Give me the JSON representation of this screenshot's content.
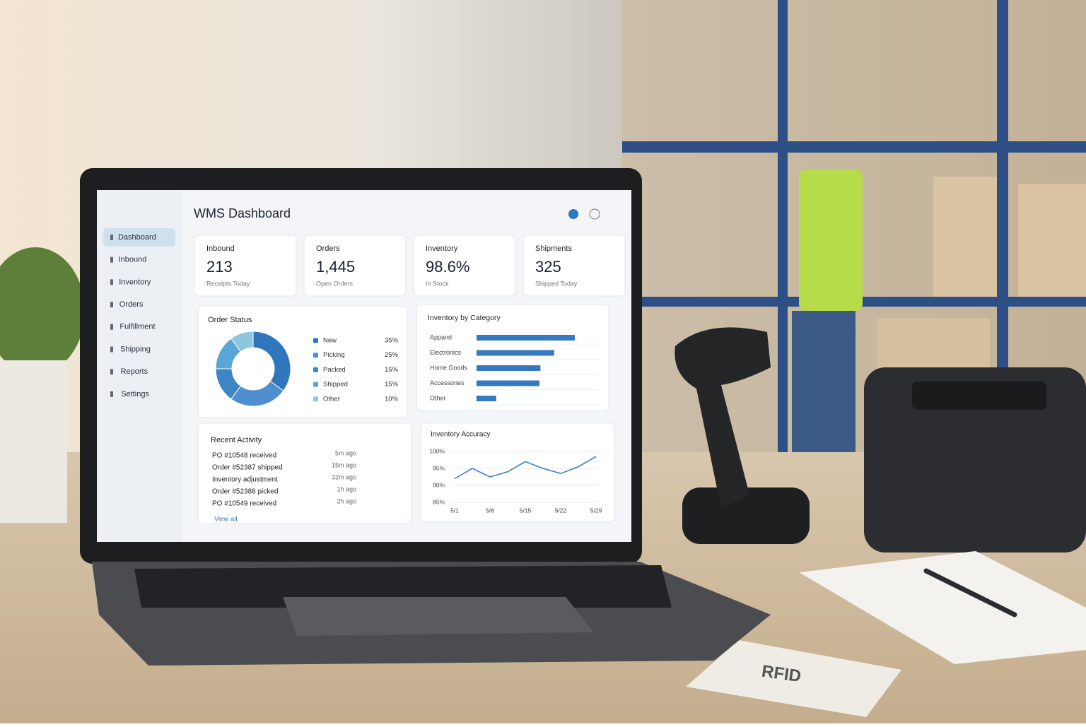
{
  "header": {
    "title": "WMS Dashboard"
  },
  "nav": [
    "Dashboard",
    "Inbound",
    "Inventory",
    "Orders",
    "Fulfillment",
    "Shipping",
    "Reports",
    "Settings"
  ],
  "kpis": [
    {
      "label": "Inbound",
      "value": "213",
      "sub": "Receipts Today"
    },
    {
      "label": "Orders",
      "value": "1,445",
      "sub": "Open Orders"
    },
    {
      "label": "Inventory",
      "value": "98.6%",
      "sub": "In Stock"
    },
    {
      "label": "Shipments",
      "value": "325",
      "sub": "Shipped Today"
    }
  ],
  "order_status": {
    "type": "pie",
    "title": "Order Status",
    "categories": [
      "New",
      "Picking",
      "Packed",
      "Shipped",
      "Other"
    ],
    "values": [
      35,
      25,
      15,
      15,
      10
    ],
    "value_labels": [
      "35%",
      "25%",
      "15%",
      "15%",
      "10%"
    ],
    "colors": [
      "#2f76bd",
      "#4f8fcf",
      "#3c86c4",
      "#5aa6d6",
      "#8cc6df"
    ]
  },
  "inventory_by_category": {
    "type": "bar",
    "title": "Inventory by Category",
    "categories": [
      "Apparel",
      "Electronics",
      "Home Goods",
      "Accessories",
      "Other"
    ],
    "values": [
      100,
      79,
      65,
      64,
      20
    ],
    "xlim": [
      0,
      100
    ],
    "color": "#3579bf"
  },
  "recent_activity": {
    "title": "Recent Activity",
    "items": [
      {
        "text": "PO #10548 received",
        "time": "5m ago"
      },
      {
        "text": "Order #52387 shipped",
        "time": "15m ago"
      },
      {
        "text": "Inventory adjustment",
        "time": "32m ago"
      },
      {
        "text": "Order #52388 picked",
        "time": "1h ago"
      },
      {
        "text": "PO #10549 received",
        "time": "2h ago"
      }
    ],
    "link": "View all"
  },
  "inventory_accuracy": {
    "type": "line",
    "title": "Inventory Accuracy",
    "categories": [
      "5/1",
      null,
      "5/8",
      null,
      "5/15",
      null,
      "5/22",
      null,
      "5/29"
    ],
    "values": [
      92,
      95,
      92.5,
      94,
      97,
      95,
      93.5,
      95.5,
      98.5
    ],
    "ylim": [
      85,
      100
    ],
    "yticks": [
      {
        "value": 85,
        "label": "85%"
      },
      {
        "value": 90,
        "label": "90%"
      },
      {
        "value": 95,
        "label": "95%"
      },
      {
        "value": 100,
        "label": "100%"
      }
    ],
    "grid": true,
    "color": "#3a7fc4"
  },
  "objects": {
    "tag": "RFID"
  }
}
